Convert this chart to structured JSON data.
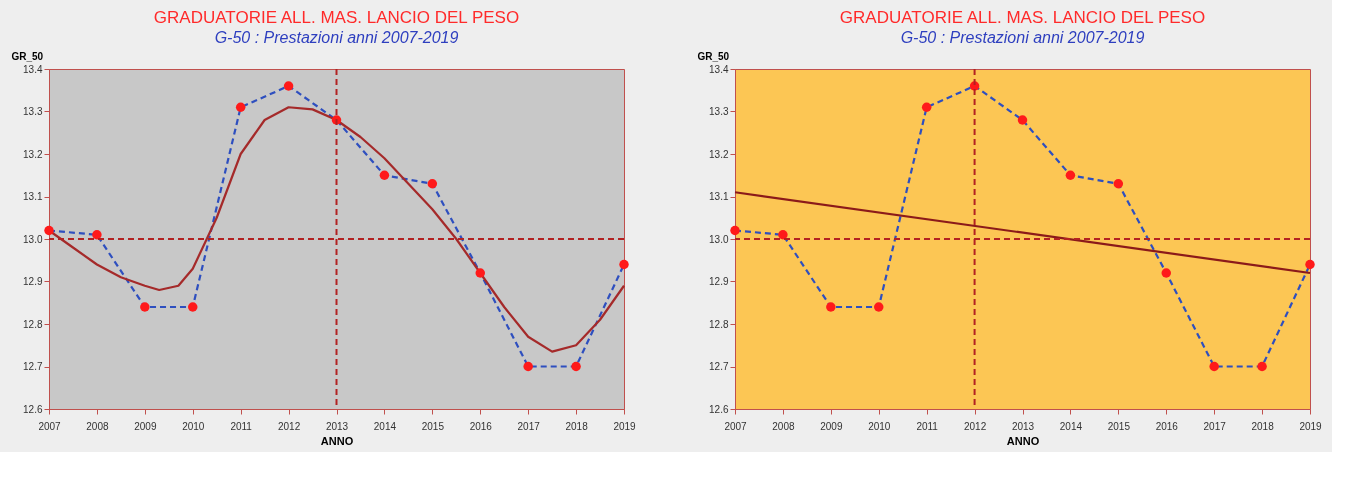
{
  "chart_data": [
    {
      "type": "line",
      "title": "GRADUATORIE ALL. MAS. LANCIO DEL PESO",
      "subtitle": "G-50 : Prestazioni anni 2007-2019",
      "xlabel": "ANNO",
      "ylabel": "GR_50",
      "x": [
        2007,
        2008,
        2009,
        2010,
        2011,
        2012,
        2013,
        2014,
        2015,
        2016,
        2017,
        2018,
        2019
      ],
      "series": [
        {
          "type": "line",
          "color": "#2e4fbf",
          "line_style": "dashed",
          "marker": "none",
          "values": [
            13.02,
            13.01,
            12.84,
            12.84,
            13.31,
            13.36,
            13.28,
            13.15,
            13.13,
            12.92,
            12.7,
            12.7,
            12.94
          ]
        },
        {
          "type": "scatter",
          "color": "#ff1a1a",
          "marker": "circle",
          "values": [
            13.02,
            13.01,
            12.84,
            12.84,
            13.31,
            13.36,
            13.28,
            13.15,
            13.13,
            12.92,
            12.7,
            12.7,
            12.94
          ]
        },
        {
          "type": "line",
          "color": "#a52a2a",
          "line_style": "solid",
          "marker": "none",
          "x": [
            2007,
            2007.5,
            2008,
            2008.5,
            2009,
            2009.3,
            2009.7,
            2010,
            2010.5,
            2011,
            2011.5,
            2012,
            2012.5,
            2013,
            2013.5,
            2014,
            2014.5,
            2015,
            2015.5,
            2016,
            2016.5,
            2017,
            2017.5,
            2018,
            2018.5,
            2019
          ],
          "values": [
            13.02,
            12.98,
            12.94,
            12.91,
            12.89,
            12.88,
            12.89,
            12.93,
            13.05,
            13.2,
            13.28,
            13.31,
            13.305,
            13.28,
            13.24,
            13.19,
            13.13,
            13.07,
            13.0,
            12.92,
            12.84,
            12.77,
            12.735,
            12.75,
            12.81,
            12.89
          ]
        }
      ],
      "ref_lines": [
        {
          "axis": "x",
          "value": 2013,
          "color": "#b22222",
          "line_style": "dashed"
        },
        {
          "axis": "y",
          "value": 13.0,
          "color": "#b22222",
          "line_style": "dashed"
        }
      ],
      "xlim": [
        2007,
        2019
      ],
      "xticks": [
        2007,
        2008,
        2009,
        2010,
        2011,
        2012,
        2013,
        2014,
        2015,
        2016,
        2017,
        2018,
        2019
      ],
      "ylim": [
        12.6,
        13.4
      ],
      "yticks": [
        12.6,
        12.7,
        12.8,
        12.9,
        {
          "value": 13.0,
          "label": "13.0"
        },
        13.1,
        13.2,
        13.3,
        13.4
      ],
      "grid": false
    },
    {
      "type": "line",
      "title": "GRADUATORIE ALL. MAS. LANCIO DEL PESO",
      "subtitle": "G-50 : Prestazioni anni 2007-2019",
      "xlabel": "ANNO",
      "ylabel": "GR_50",
      "x": [
        2007,
        2008,
        2009,
        2010,
        2011,
        2012,
        2013,
        2014,
        2015,
        2016,
        2017,
        2018,
        2019
      ],
      "series": [
        {
          "type": "line",
          "color": "#2e4fbf",
          "line_style": "dashed",
          "marker": "none",
          "values": [
            13.02,
            13.01,
            12.84,
            12.84,
            13.31,
            13.36,
            13.28,
            13.15,
            13.13,
            12.92,
            12.7,
            12.7,
            12.94
          ]
        },
        {
          "type": "scatter",
          "color": "#ff1a1a",
          "marker": "circle",
          "values": [
            13.02,
            13.01,
            12.84,
            12.84,
            13.31,
            13.36,
            13.28,
            13.15,
            13.13,
            12.92,
            12.7,
            12.7,
            12.94
          ]
        },
        {
          "type": "line",
          "color": "#8b1a1a",
          "line_style": "solid",
          "marker": "none",
          "x": [
            2007,
            2019
          ],
          "values": [
            13.11,
            12.92
          ]
        }
      ],
      "ref_lines": [
        {
          "axis": "x",
          "value": 2012,
          "color": "#b22222",
          "line_style": "dashed"
        },
        {
          "axis": "y",
          "value": 13.0,
          "color": "#b22222",
          "line_style": "dashed"
        }
      ],
      "xlim": [
        2007,
        2019
      ],
      "xticks": [
        2007,
        2008,
        2009,
        2010,
        2011,
        2012,
        2013,
        2014,
        2015,
        2016,
        2017,
        2018,
        2019
      ],
      "ylim": [
        12.6,
        13.4
      ],
      "yticks": [
        12.6,
        12.7,
        12.8,
        12.9,
        {
          "value": 13.0,
          "label": "13.0"
        },
        13.1,
        13.2,
        13.3,
        13.4
      ],
      "grid": false
    }
  ]
}
